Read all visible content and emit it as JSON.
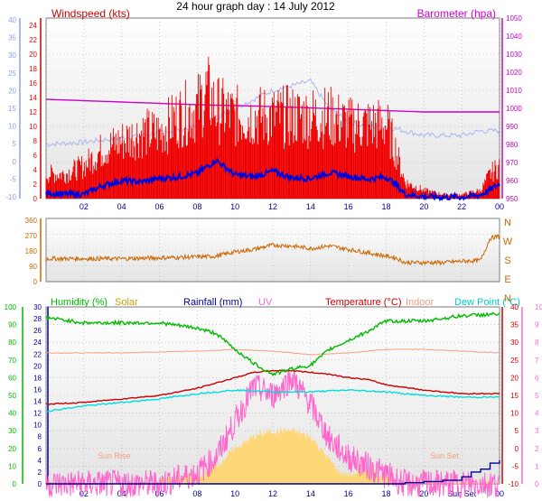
{
  "title": "24 hour graph day : 14 July 2012",
  "colors": {
    "wind": "#ff0000",
    "gust_bar": "#ee0000",
    "wind_avg": "#0000dd",
    "wind_axis": "#8fa0e6",
    "baro": "#cc00cc",
    "baro_light": "#aab4f0",
    "direction": "#cc6600",
    "humidity": "#00bb00",
    "solar": "#ffd56b",
    "solar_text": "#c8a000",
    "rainfall": "#000099",
    "uv": "#ff66cc",
    "temperature": "#cc0000",
    "indoor": "#f0a080",
    "dewpoint": "#00dddd",
    "frame_bg": "#f2f2f2",
    "grid": "#b0b0b0"
  },
  "chart_data": [
    {
      "type": "line",
      "panel": "wind_pressure",
      "left_axis_label": "Windspeed (kts)",
      "right_axis_label": "Barometer (hpa)",
      "x_ticks": [
        "02",
        "04",
        "06",
        "08",
        "10",
        "12",
        "14",
        "16",
        "18",
        "20",
        "22",
        "00"
      ],
      "left_ticks_kts": [
        0,
        2,
        4,
        6,
        8,
        10,
        12,
        14,
        16,
        18,
        20,
        22,
        24
      ],
      "left_ticks_secondary": [
        40,
        35,
        30,
        25,
        20,
        15,
        10,
        5,
        0,
        -5,
        -10
      ],
      "right_ticks_hpa": [
        950,
        960,
        970,
        980,
        990,
        1000,
        1010,
        1020,
        1030,
        1040,
        1050
      ],
      "y_range_kts": [
        0,
        25
      ],
      "y_range_hpa": [
        950,
        1050
      ],
      "series": [
        {
          "name": "gust",
          "x": [
            0,
            1,
            2,
            3,
            4,
            5,
            6,
            7,
            8,
            8.5,
            9,
            10,
            11,
            12,
            13,
            14,
            15,
            16,
            17,
            18,
            18.5,
            19,
            20,
            21,
            22,
            23,
            23.5,
            24
          ],
          "values": [
            3,
            3,
            4,
            6,
            7,
            8,
            8,
            10,
            11,
            13,
            11,
            10,
            10,
            10,
            10,
            10,
            10,
            9,
            9,
            9,
            6,
            2,
            1,
            0.5,
            0.5,
            1,
            3,
            4
          ]
        },
        {
          "name": "avg",
          "x": [
            0,
            1,
            2,
            3,
            4,
            5,
            6,
            7,
            8,
            9,
            10,
            11,
            12,
            13,
            14,
            15,
            16,
            17,
            18,
            18.5,
            19,
            20,
            21,
            22,
            23,
            24
          ],
          "values": [
            0.8,
            0.6,
            0.6,
            1.8,
            2.5,
            2.3,
            2.8,
            3.0,
            3.5,
            5.3,
            3.3,
            3.0,
            3.8,
            2.9,
            2.8,
            3.6,
            3.1,
            2.7,
            3.0,
            2.0,
            0.6,
            0.3,
            0.2,
            0.2,
            0.5,
            2.0
          ]
        },
        {
          "name": "secondary",
          "x": [
            0,
            2,
            4,
            6,
            8,
            10,
            11,
            12,
            13,
            14,
            15,
            16,
            17,
            18,
            19,
            20,
            21,
            22,
            23,
            24
          ],
          "values": [
            12,
            12.5,
            13.5,
            14.5,
            16,
            20,
            22,
            24,
            25,
            26,
            20,
            17,
            16,
            16,
            15,
            14,
            14,
            14,
            15,
            15
          ]
        },
        {
          "name": "pressure",
          "x": [
            0,
            4,
            8,
            12,
            16,
            20,
            24
          ],
          "values": [
            1005,
            1003.5,
            1002,
            1001,
            999.5,
            998,
            998
          ]
        }
      ]
    },
    {
      "type": "line",
      "panel": "wind_direction",
      "left_ticks_deg": [
        0,
        90,
        180,
        270,
        360
      ],
      "right_labels": [
        "N",
        "W",
        "S",
        "E",
        "N"
      ],
      "y_range": [
        0,
        360
      ],
      "series": [
        {
          "name": "direction",
          "x": [
            0,
            2,
            4,
            6,
            8,
            9,
            10,
            11,
            12,
            13,
            14,
            15,
            16,
            17,
            18,
            18.5,
            19,
            21,
            22,
            23,
            23.5,
            24
          ],
          "values": [
            135,
            135,
            135,
            140,
            145,
            150,
            175,
            190,
            215,
            210,
            195,
            210,
            190,
            170,
            150,
            140,
            112,
            112,
            120,
            125,
            255,
            268
          ]
        }
      ]
    },
    {
      "type": "line",
      "panel": "temperature_humidity",
      "labels": {
        "humidity": "Humidity (%)",
        "solar": "Solar",
        "rainfall": "Rainfall (mm)",
        "uv": "UV",
        "temperature": "Temperature (°C)",
        "indoor": "Indoor",
        "dewpoint": "Dew Point (°C)"
      },
      "annotations": [
        "Sun Rise",
        "Sun Set"
      ],
      "x_ticks": [
        "02",
        "04",
        "06",
        "08",
        "10",
        "12",
        "14",
        "16",
        "18",
        "20",
        "Sun Set",
        "00"
      ],
      "ticks_humidity": [
        0,
        10,
        20,
        30,
        40,
        50,
        60,
        70,
        80,
        90,
        100
      ],
      "ticks_rain": [
        0,
        2,
        4,
        6,
        8,
        10,
        12,
        14,
        16,
        18,
        20,
        22,
        24,
        26,
        28,
        30
      ],
      "ticks_temperature": [
        -10,
        -5,
        0,
        5,
        10,
        15,
        20,
        25,
        30,
        35,
        40
      ],
      "ticks_uv": [
        0,
        1,
        2,
        3,
        4,
        5,
        6,
        7,
        8,
        9,
        10
      ],
      "series": [
        {
          "name": "humidity",
          "x": [
            0,
            2,
            4,
            6,
            8,
            9,
            10,
            11,
            12,
            13,
            14,
            15,
            16,
            17,
            18,
            20,
            22,
            24
          ],
          "values": [
            94,
            91,
            91,
            91,
            88,
            85,
            76,
            68,
            62,
            65,
            67,
            76,
            81,
            86,
            92,
            92,
            95,
            96
          ]
        },
        {
          "name": "temperature",
          "x": [
            0,
            2,
            4,
            6,
            8,
            10,
            11,
            12,
            13,
            14,
            15,
            16,
            17,
            18,
            20,
            22,
            24
          ],
          "values": [
            12.5,
            13,
            14,
            15,
            17,
            20,
            21.5,
            22,
            22,
            21.5,
            21,
            20,
            19.5,
            18,
            16.5,
            15.5,
            15.5
          ]
        },
        {
          "name": "indoor",
          "x": [
            0,
            4,
            8,
            10,
            12,
            14,
            16,
            18,
            20,
            22,
            24
          ],
          "values": [
            27,
            27,
            27.5,
            28,
            27.5,
            26.5,
            27,
            28,
            28,
            27.5,
            27
          ]
        },
        {
          "name": "dewpoint",
          "x": [
            0,
            2,
            4,
            6,
            8,
            10,
            12,
            14,
            16,
            18,
            20,
            22,
            24
          ],
          "values": [
            10.5,
            12,
            13,
            14,
            15.5,
            16.5,
            16,
            16,
            16.5,
            16,
            15,
            14.5,
            14.5
          ]
        },
        {
          "name": "uv",
          "x": [
            0,
            6,
            7,
            8,
            9,
            10,
            11,
            12,
            13,
            14,
            15,
            16,
            17,
            18,
            19,
            24
          ],
          "values": [
            0,
            0,
            0.3,
            0.6,
            1.5,
            3.5,
            5.5,
            5,
            6,
            4.5,
            2.5,
            1.5,
            1,
            0.5,
            0,
            0
          ]
        },
        {
          "name": "solar",
          "x": [
            0,
            5.5,
            6.5,
            7.5,
            8,
            9,
            10,
            11,
            12,
            13,
            14,
            15,
            15.5,
            16,
            17,
            18,
            19,
            20,
            24
          ],
          "values": [
            0,
            0,
            1,
            1.5,
            0.8,
            3,
            6,
            8,
            9,
            9,
            8,
            4,
            2,
            1.5,
            2.5,
            1.2,
            0.2,
            0,
            0
          ]
        },
        {
          "name": "rainfall",
          "x": [
            0,
            18,
            19,
            20,
            21,
            22,
            22.5,
            23,
            23.5,
            24
          ],
          "values": [
            0,
            0,
            0.2,
            0.4,
            0.6,
            1.2,
            2,
            2.5,
            3.5,
            4
          ]
        }
      ]
    }
  ]
}
